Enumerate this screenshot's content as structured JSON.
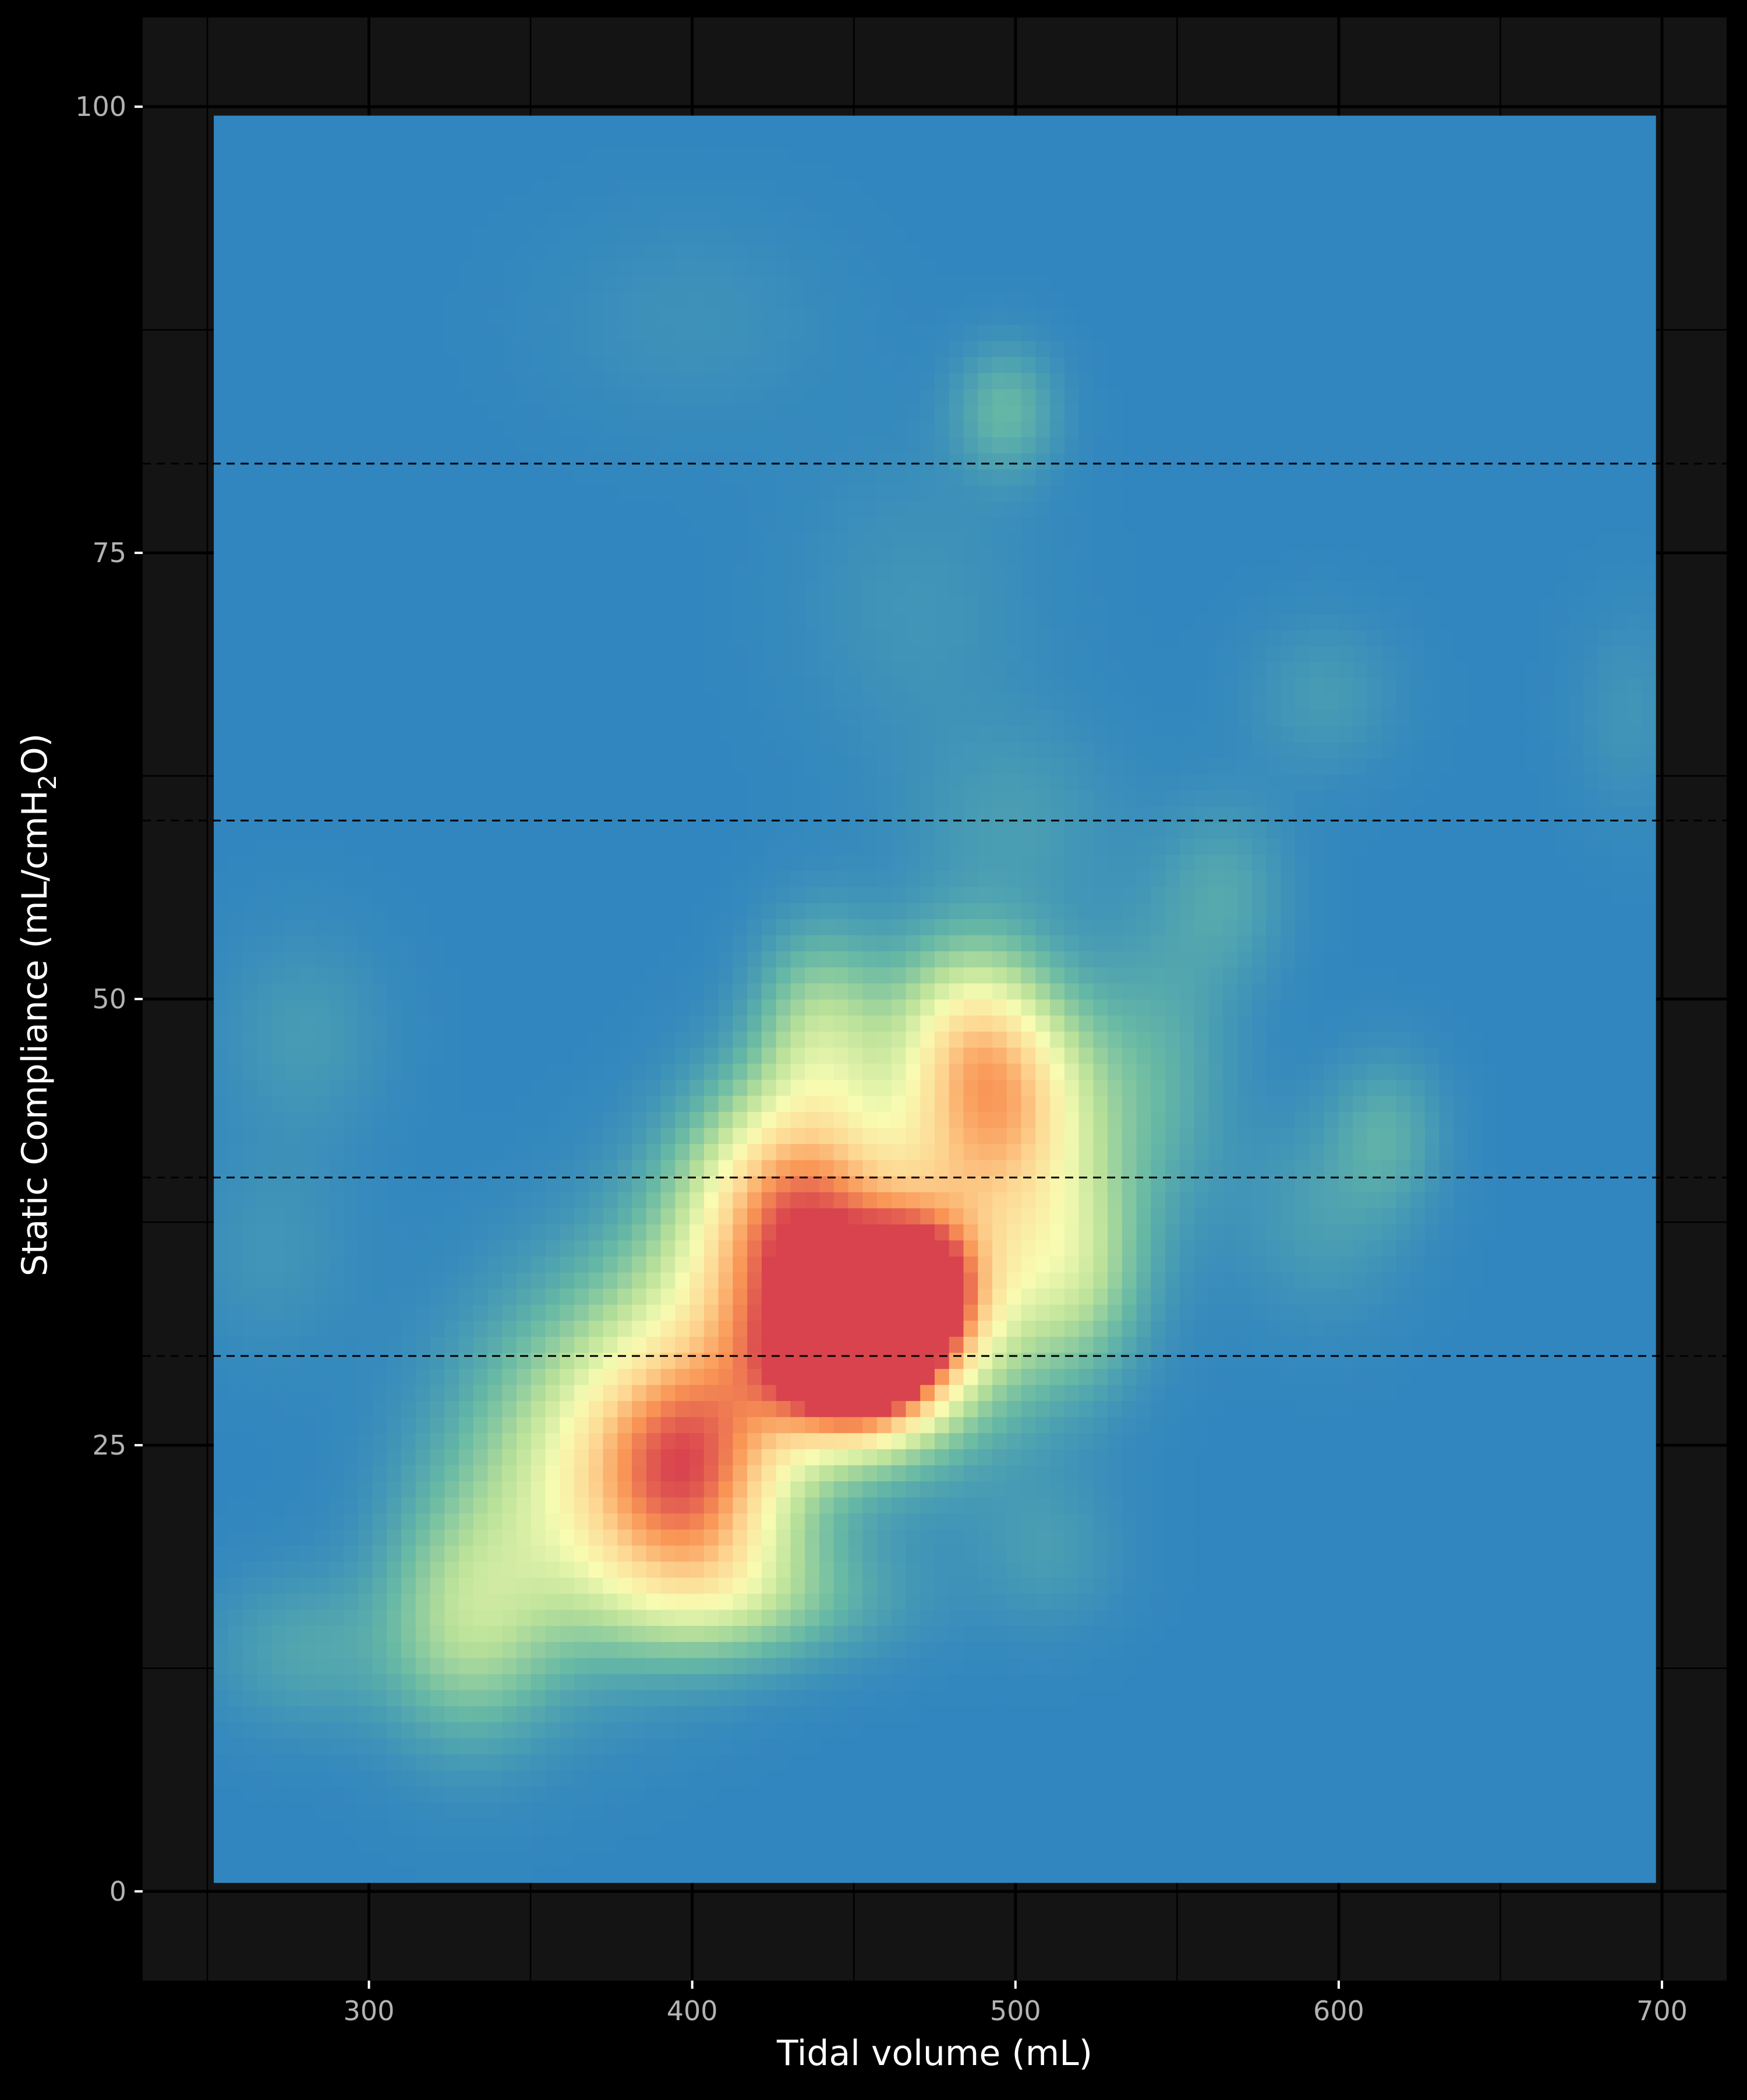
{
  "chart_data": {
    "type": "heatmap",
    "title": "",
    "xlabel": "Tidal volume (mL)",
    "ylabel": {
      "prefix": "Static Compliance (mL/cmH",
      "subscript": "2",
      "suffix": "O)"
    },
    "x_ticks": [
      300,
      400,
      500,
      600,
      700
    ],
    "y_ticks": [
      0,
      25,
      50,
      75,
      100
    ],
    "xlim": [
      230,
      720
    ],
    "ylim": [
      -5,
      105
    ],
    "data_extent": {
      "x": [
        252,
        698
      ],
      "y": [
        0.5,
        99.5
      ]
    },
    "reference_lines_y": [
      30,
      40,
      60,
      80
    ],
    "reference_line_style": "dashed",
    "background_level": 0.0,
    "density_hotspots": [
      {
        "x": 452,
        "y": 29.5,
        "sx": 16,
        "sy": 2.6,
        "level": 0.98
      },
      {
        "x": 468,
        "y": 33.5,
        "sx": 13,
        "sy": 2.6,
        "level": 0.82
      },
      {
        "x": 446,
        "y": 32,
        "sx": 28,
        "sy": 5,
        "level": 0.58
      },
      {
        "x": 432,
        "y": 36,
        "sx": 26,
        "sy": 5,
        "level": 0.38
      },
      {
        "x": 398,
        "y": 25,
        "sx": 22,
        "sy": 4,
        "level": 0.5
      },
      {
        "x": 400,
        "y": 20,
        "sx": 22,
        "sy": 4,
        "level": 0.42
      },
      {
        "x": 430,
        "y": 40,
        "sx": 20,
        "sy": 4,
        "level": 0.38
      },
      {
        "x": 490,
        "y": 39,
        "sx": 24,
        "sy": 7,
        "level": 0.42
      },
      {
        "x": 498,
        "y": 44.5,
        "sx": 20,
        "sy": 4,
        "level": 0.38
      },
      {
        "x": 440,
        "y": 48,
        "sx": 14,
        "sy": 4,
        "level": 0.3
      },
      {
        "x": 485,
        "y": 48.5,
        "sx": 16,
        "sy": 3.5,
        "level": 0.3
      },
      {
        "x": 360,
        "y": 22,
        "sx": 26,
        "sy": 6,
        "level": 0.32
      },
      {
        "x": 330,
        "y": 15,
        "sx": 18,
        "sy": 4.5,
        "level": 0.27
      },
      {
        "x": 520,
        "y": 35,
        "sx": 14,
        "sy": 4,
        "level": 0.22
      },
      {
        "x": 420,
        "y": 16.5,
        "sx": 30,
        "sy": 2.5,
        "level": 0.18
      },
      {
        "x": 395,
        "y": 30,
        "sx": 30,
        "sy": 5,
        "level": 0.22
      },
      {
        "x": 545,
        "y": 46,
        "sx": 16,
        "sy": 6,
        "level": 0.12
      },
      {
        "x": 565,
        "y": 56,
        "sx": 14,
        "sy": 3.5,
        "level": 0.1
      },
      {
        "x": 497,
        "y": 83,
        "sx": 11,
        "sy": 2.5,
        "level": 0.16
      },
      {
        "x": 615,
        "y": 42.5,
        "sx": 12,
        "sy": 3,
        "level": 0.12
      },
      {
        "x": 595,
        "y": 38,
        "sx": 18,
        "sy": 4,
        "level": 0.08
      },
      {
        "x": 500,
        "y": 60,
        "sx": 22,
        "sy": 4,
        "level": 0.07
      },
      {
        "x": 595,
        "y": 67,
        "sx": 16,
        "sy": 3,
        "level": 0.07
      },
      {
        "x": 280,
        "y": 48,
        "sx": 18,
        "sy": 4,
        "level": 0.07
      },
      {
        "x": 280,
        "y": 13.5,
        "sx": 20,
        "sy": 3,
        "level": 0.1
      },
      {
        "x": 270,
        "y": 36,
        "sx": 18,
        "sy": 4,
        "level": 0.05
      },
      {
        "x": 690,
        "y": 66,
        "sx": 12,
        "sy": 4,
        "level": 0.05
      },
      {
        "x": 510,
        "y": 19,
        "sx": 16,
        "sy": 3,
        "level": 0.07
      },
      {
        "x": 470,
        "y": 72,
        "sx": 26,
        "sy": 6,
        "level": 0.05
      },
      {
        "x": 400,
        "y": 88,
        "sx": 30,
        "sy": 4,
        "level": 0.04
      }
    ],
    "colormap": [
      "#3186bf",
      "#66b8a5",
      "#b8e099",
      "#f8fcb2",
      "#fdd692",
      "#f99555",
      "#d8434e"
    ],
    "colors": {
      "page_background": "#000000",
      "panel_background": "#141414",
      "grid_line": "#000000",
      "axis_text": "#b3b3b3",
      "axis_title": "#ffffff",
      "reference_line": "#000000"
    },
    "grid": true,
    "legend": "none"
  }
}
